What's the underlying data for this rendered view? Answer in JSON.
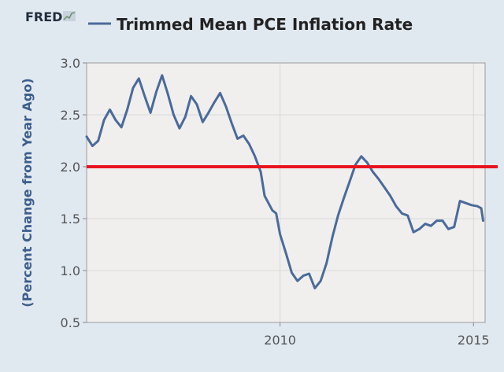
{
  "chart_data": {
    "type": "line",
    "brand": "FRED",
    "title": "Trimmed Mean PCE Inflation Rate",
    "xlabel": "",
    "ylabel": "(Percent Change from Year Ago)",
    "ylim": [
      0.5,
      3.0
    ],
    "xlim": [
      2005.0,
      2015.3
    ],
    "y_ticks": [
      "0.5",
      "1.0",
      "1.5",
      "2.0",
      "2.5",
      "3.0"
    ],
    "x_ticks": [
      "2010",
      "2015"
    ],
    "grid": true,
    "legend": "top-left",
    "reference_line": {
      "value": 2.0,
      "color": "#e8141e"
    },
    "series": [
      {
        "name": "Trimmed Mean PCE Inflation Rate",
        "color": "#4a6a9a",
        "x": [
          2005.0,
          2005.15,
          2005.3,
          2005.45,
          2005.6,
          2005.75,
          2005.9,
          2006.05,
          2006.2,
          2006.35,
          2006.5,
          2006.65,
          2006.8,
          2006.95,
          2007.1,
          2007.25,
          2007.4,
          2007.55,
          2007.7,
          2007.85,
          2008.0,
          2008.15,
          2008.3,
          2008.45,
          2008.6,
          2008.75,
          2008.9,
          2009.05,
          2009.2,
          2009.35,
          2009.5,
          2009.6,
          2009.7,
          2009.8,
          2009.9,
          2010.0,
          2010.15,
          2010.3,
          2010.45,
          2010.6,
          2010.75,
          2010.9,
          2011.05,
          2011.2,
          2011.35,
          2011.5,
          2011.65,
          2011.8,
          2011.95,
          2012.1,
          2012.25,
          2012.4,
          2012.55,
          2012.7,
          2012.85,
          2013.0,
          2013.15,
          2013.3,
          2013.45,
          2013.6,
          2013.75,
          2013.9,
          2014.05,
          2014.2,
          2014.35,
          2014.5,
          2014.65,
          2014.8,
          2014.95,
          2015.1,
          2015.2,
          2015.25
        ],
        "values": [
          2.29,
          2.2,
          2.25,
          2.45,
          2.55,
          2.45,
          2.38,
          2.55,
          2.76,
          2.85,
          2.68,
          2.52,
          2.72,
          2.88,
          2.7,
          2.5,
          2.37,
          2.48,
          2.68,
          2.6,
          2.43,
          2.52,
          2.62,
          2.71,
          2.58,
          2.42,
          2.27,
          2.3,
          2.22,
          2.1,
          1.95,
          1.72,
          1.65,
          1.58,
          1.55,
          1.35,
          1.17,
          0.98,
          0.9,
          0.95,
          0.97,
          0.83,
          0.9,
          1.07,
          1.32,
          1.53,
          1.7,
          1.86,
          2.02,
          2.1,
          2.04,
          1.95,
          1.88,
          1.8,
          1.72,
          1.62,
          1.55,
          1.53,
          1.37,
          1.4,
          1.45,
          1.43,
          1.48,
          1.48,
          1.4,
          1.42,
          1.67,
          1.65,
          1.63,
          1.62,
          1.6,
          1.48
        ]
      }
    ]
  }
}
